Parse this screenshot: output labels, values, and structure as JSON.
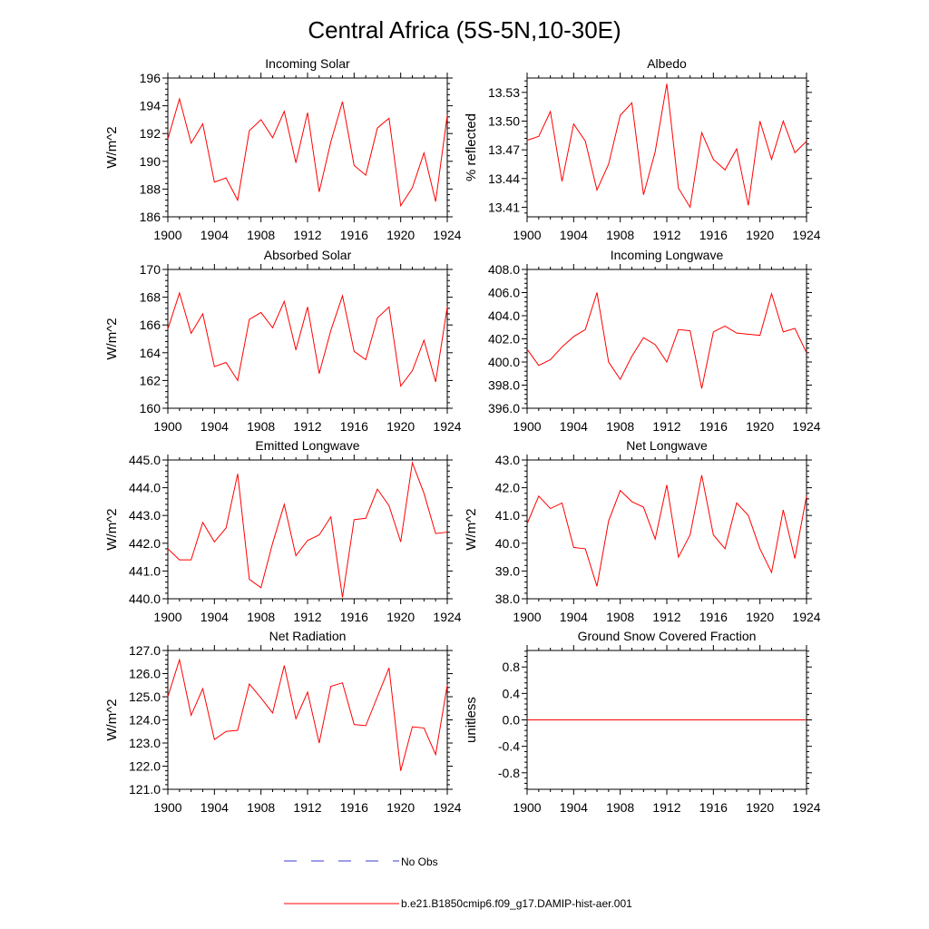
{
  "figure": {
    "title": "Central Africa (5S-5N,10-30E)"
  },
  "legend": {
    "obs_label": "No Obs",
    "model_label": "b.e21.B1850cmip6.f09_g17.DAMIP-hist-aer.001",
    "obs_color": "#3b3bd4",
    "model_color": "#ff0000"
  },
  "chart_data": [
    {
      "type": "line",
      "title": "Incoming Solar",
      "ylabel": "W/m^2",
      "xlim": [
        1900,
        1924
      ],
      "ylim": [
        186,
        196
      ],
      "yticks": [
        186,
        188,
        190,
        192,
        194,
        196
      ],
      "ytick_labels": [
        "186",
        "188",
        "190",
        "192",
        "194",
        "196"
      ],
      "xticks": [
        1900,
        1904,
        1908,
        1912,
        1916,
        1920,
        1924
      ],
      "xtick_labels": [
        "1900",
        "1904",
        "1908",
        "1912",
        "1916",
        "1920",
        "1924"
      ],
      "x": [
        1900,
        1901,
        1902,
        1903,
        1904,
        1905,
        1906,
        1907,
        1908,
        1909,
        1910,
        1911,
        1912,
        1913,
        1914,
        1915,
        1916,
        1917,
        1918,
        1919,
        1920,
        1921,
        1922,
        1923,
        1924
      ],
      "series": [
        {
          "name": "b.e21.B1850cmip6.f09_g17.DAMIP-hist-aer.001",
          "color": "#ff0000",
          "values": [
            191.6,
            194.5,
            191.3,
            192.7,
            188.5,
            188.8,
            187.2,
            192.2,
            193.0,
            191.7,
            193.6,
            189.9,
            193.5,
            187.8,
            191.4,
            194.3,
            189.7,
            189.0,
            192.4,
            193.1,
            186.8,
            188.1,
            190.6,
            187.1,
            193.3
          ]
        }
      ]
    },
    {
      "type": "line",
      "title": "Albedo",
      "ylabel": "% reflected",
      "xlim": [
        1900,
        1924
      ],
      "ylim": [
        13.4,
        13.545
      ],
      "yticks": [
        13.41,
        13.44,
        13.47,
        13.5,
        13.53
      ],
      "ytick_labels": [
        "13.41",
        "13.44",
        "13.47",
        "13.50",
        "13.53"
      ],
      "xticks": [
        1900,
        1904,
        1908,
        1912,
        1916,
        1920,
        1924
      ],
      "xtick_labels": [
        "1900",
        "1904",
        "1908",
        "1912",
        "1916",
        "1920",
        "1924"
      ],
      "x": [
        1900,
        1901,
        1902,
        1903,
        1904,
        1905,
        1906,
        1907,
        1908,
        1909,
        1910,
        1911,
        1912,
        1913,
        1914,
        1915,
        1916,
        1917,
        1918,
        1919,
        1920,
        1921,
        1922,
        1923,
        1924
      ],
      "series": [
        {
          "name": "b.e21.B1850cmip6.f09_g17.DAMIP-hist-aer.001",
          "color": "#ff0000",
          "values": [
            13.48,
            13.484,
            13.51,
            13.437,
            13.497,
            13.479,
            13.428,
            13.455,
            13.506,
            13.519,
            13.423,
            13.468,
            13.539,
            13.43,
            13.41,
            13.488,
            13.46,
            13.449,
            13.471,
            13.412,
            13.5,
            13.46,
            13.5,
            13.467,
            13.479
          ]
        }
      ]
    },
    {
      "type": "line",
      "title": "Absorbed Solar",
      "ylabel": "W/m^2",
      "xlim": [
        1900,
        1924
      ],
      "ylim": [
        160,
        170
      ],
      "yticks": [
        160,
        162,
        164,
        166,
        168,
        170
      ],
      "ytick_labels": [
        "160",
        "162",
        "164",
        "166",
        "168",
        "170"
      ],
      "xticks": [
        1900,
        1904,
        1908,
        1912,
        1916,
        1920,
        1924
      ],
      "xtick_labels": [
        "1900",
        "1904",
        "1908",
        "1912",
        "1916",
        "1920",
        "1924"
      ],
      "x": [
        1900,
        1901,
        1902,
        1903,
        1904,
        1905,
        1906,
        1907,
        1908,
        1909,
        1910,
        1911,
        1912,
        1913,
        1914,
        1915,
        1916,
        1917,
        1918,
        1919,
        1920,
        1921,
        1922,
        1923,
        1924
      ],
      "series": [
        {
          "name": "b.e21.B1850cmip6.f09_g17.DAMIP-hist-aer.001",
          "color": "#ff0000",
          "values": [
            165.7,
            168.3,
            165.4,
            166.8,
            163.0,
            163.3,
            162.0,
            166.4,
            166.9,
            165.8,
            167.7,
            164.2,
            167.3,
            162.5,
            165.6,
            168.1,
            164.1,
            163.5,
            166.5,
            167.3,
            161.6,
            162.7,
            164.9,
            161.9,
            167.3
          ]
        }
      ]
    },
    {
      "type": "line",
      "title": "Incoming Longwave",
      "ylabel": "",
      "xlim": [
        1900,
        1924
      ],
      "ylim": [
        396,
        408
      ],
      "yticks": [
        396,
        398,
        400,
        402,
        404,
        406,
        408
      ],
      "ytick_labels": [
        "396.0",
        "398.0",
        "400.0",
        "402.0",
        "404.0",
        "406.0",
        "408.0"
      ],
      "xticks": [
        1900,
        1904,
        1908,
        1912,
        1916,
        1920,
        1924
      ],
      "xtick_labels": [
        "1900",
        "1904",
        "1908",
        "1912",
        "1916",
        "1920",
        "1924"
      ],
      "x": [
        1900,
        1901,
        1902,
        1903,
        1904,
        1905,
        1906,
        1907,
        1908,
        1909,
        1910,
        1911,
        1912,
        1913,
        1914,
        1915,
        1916,
        1917,
        1918,
        1919,
        1920,
        1921,
        1922,
        1923,
        1924
      ],
      "series": [
        {
          "name": "b.e21.B1850cmip6.f09_g17.DAMIP-hist-aer.001",
          "color": "#ff0000",
          "values": [
            401.1,
            399.7,
            400.2,
            401.3,
            402.2,
            402.8,
            406.0,
            400.0,
            398.5,
            400.5,
            402.1,
            401.5,
            400.0,
            402.8,
            402.7,
            397.7,
            402.6,
            403.1,
            402.5,
            402.4,
            402.3,
            405.9,
            402.6,
            402.9,
            400.8
          ]
        }
      ]
    },
    {
      "type": "line",
      "title": "Emitted Longwave",
      "ylabel": "W/m^2",
      "xlim": [
        1900,
        1924
      ],
      "ylim": [
        440,
        445
      ],
      "yticks": [
        440,
        441,
        442,
        443,
        444,
        445
      ],
      "ytick_labels": [
        "440.0",
        "441.0",
        "442.0",
        "443.0",
        "444.0",
        "445.0"
      ],
      "xticks": [
        1900,
        1904,
        1908,
        1912,
        1916,
        1920,
        1924
      ],
      "xtick_labels": [
        "1900",
        "1904",
        "1908",
        "1912",
        "1916",
        "1920",
        "1924"
      ],
      "x": [
        1900,
        1901,
        1902,
        1903,
        1904,
        1905,
        1906,
        1907,
        1908,
        1909,
        1910,
        1911,
        1912,
        1913,
        1914,
        1915,
        1916,
        1917,
        1918,
        1919,
        1920,
        1921,
        1922,
        1923,
        1924
      ],
      "series": [
        {
          "name": "b.e21.B1850cmip6.f09_g17.DAMIP-hist-aer.001",
          "color": "#ff0000",
          "values": [
            441.8,
            441.4,
            441.4,
            442.75,
            442.05,
            442.55,
            444.5,
            440.7,
            440.4,
            442.0,
            443.4,
            441.55,
            442.1,
            442.3,
            442.95,
            440.05,
            442.85,
            442.9,
            443.95,
            443.35,
            442.05,
            444.9,
            443.8,
            442.35,
            442.4
          ]
        }
      ]
    },
    {
      "type": "line",
      "title": "Net Longwave",
      "ylabel": "W/m^2",
      "xlim": [
        1900,
        1924
      ],
      "ylim": [
        38,
        43
      ],
      "yticks": [
        38,
        39,
        40,
        41,
        42,
        43
      ],
      "ytick_labels": [
        "38.0",
        "39.0",
        "40.0",
        "41.0",
        "42.0",
        "43.0"
      ],
      "xticks": [
        1900,
        1904,
        1908,
        1912,
        1916,
        1920,
        1924
      ],
      "xtick_labels": [
        "1900",
        "1904",
        "1908",
        "1912",
        "1916",
        "1920",
        "1924"
      ],
      "x": [
        1900,
        1901,
        1902,
        1903,
        1904,
        1905,
        1906,
        1907,
        1908,
        1909,
        1910,
        1911,
        1912,
        1913,
        1914,
        1915,
        1916,
        1917,
        1918,
        1919,
        1920,
        1921,
        1922,
        1923,
        1924
      ],
      "series": [
        {
          "name": "b.e21.B1850cmip6.f09_g17.DAMIP-hist-aer.001",
          "color": "#ff0000",
          "values": [
            40.7,
            41.7,
            41.25,
            41.45,
            39.85,
            39.8,
            38.45,
            40.8,
            41.9,
            41.5,
            41.3,
            40.15,
            42.1,
            39.5,
            40.3,
            42.45,
            40.3,
            39.8,
            41.45,
            41.0,
            39.8,
            38.95,
            41.2,
            39.45,
            41.7
          ]
        }
      ]
    },
    {
      "type": "line",
      "title": "Net Radiation",
      "ylabel": "W/m^2",
      "xlim": [
        1900,
        1924
      ],
      "ylim": [
        121,
        127
      ],
      "yticks": [
        121,
        122,
        123,
        124,
        125,
        126,
        127
      ],
      "ytick_labels": [
        "121.0",
        "122.0",
        "123.0",
        "124.0",
        "125.0",
        "126.0",
        "127.0"
      ],
      "xticks": [
        1900,
        1904,
        1908,
        1912,
        1916,
        1920,
        1924
      ],
      "xtick_labels": [
        "1900",
        "1904",
        "1908",
        "1912",
        "1916",
        "1920",
        "1924"
      ],
      "x": [
        1900,
        1901,
        1902,
        1903,
        1904,
        1905,
        1906,
        1907,
        1908,
        1909,
        1910,
        1911,
        1912,
        1913,
        1914,
        1915,
        1916,
        1917,
        1918,
        1919,
        1920,
        1921,
        1922,
        1923,
        1924
      ],
      "series": [
        {
          "name": "b.e21.B1850cmip6.f09_g17.DAMIP-hist-aer.001",
          "color": "#ff0000",
          "values": [
            125.0,
            126.6,
            124.2,
            125.35,
            123.15,
            123.5,
            123.55,
            125.55,
            124.95,
            124.3,
            126.35,
            124.05,
            125.2,
            123.0,
            125.45,
            125.6,
            123.8,
            123.75,
            125.0,
            126.25,
            121.8,
            123.7,
            123.65,
            122.5,
            125.5
          ]
        }
      ]
    },
    {
      "type": "line",
      "title": "Ground Snow Covered Fraction",
      "ylabel": "unitless",
      "xlim": [
        1900,
        1924
      ],
      "ylim": [
        -1.05,
        1.05
      ],
      "yticks": [
        -0.8,
        -0.4,
        0.0,
        0.4,
        0.8
      ],
      "ytick_labels": [
        "-0.8",
        "-0.4",
        "0.0",
        "0.4",
        "0.8"
      ],
      "xticks": [
        1900,
        1904,
        1908,
        1912,
        1916,
        1920,
        1924
      ],
      "xtick_labels": [
        "1900",
        "1904",
        "1908",
        "1912",
        "1916",
        "1920",
        "1924"
      ],
      "x": [
        1900,
        1901,
        1902,
        1903,
        1904,
        1905,
        1906,
        1907,
        1908,
        1909,
        1910,
        1911,
        1912,
        1913,
        1914,
        1915,
        1916,
        1917,
        1918,
        1919,
        1920,
        1921,
        1922,
        1923,
        1924
      ],
      "series": [
        {
          "name": "b.e21.B1850cmip6.f09_g17.DAMIP-hist-aer.001",
          "color": "#ff0000",
          "values": [
            0,
            0,
            0,
            0,
            0,
            0,
            0,
            0,
            0,
            0,
            0,
            0,
            0,
            0,
            0,
            0,
            0,
            0,
            0,
            0,
            0,
            0,
            0,
            0,
            0
          ]
        }
      ]
    }
  ]
}
